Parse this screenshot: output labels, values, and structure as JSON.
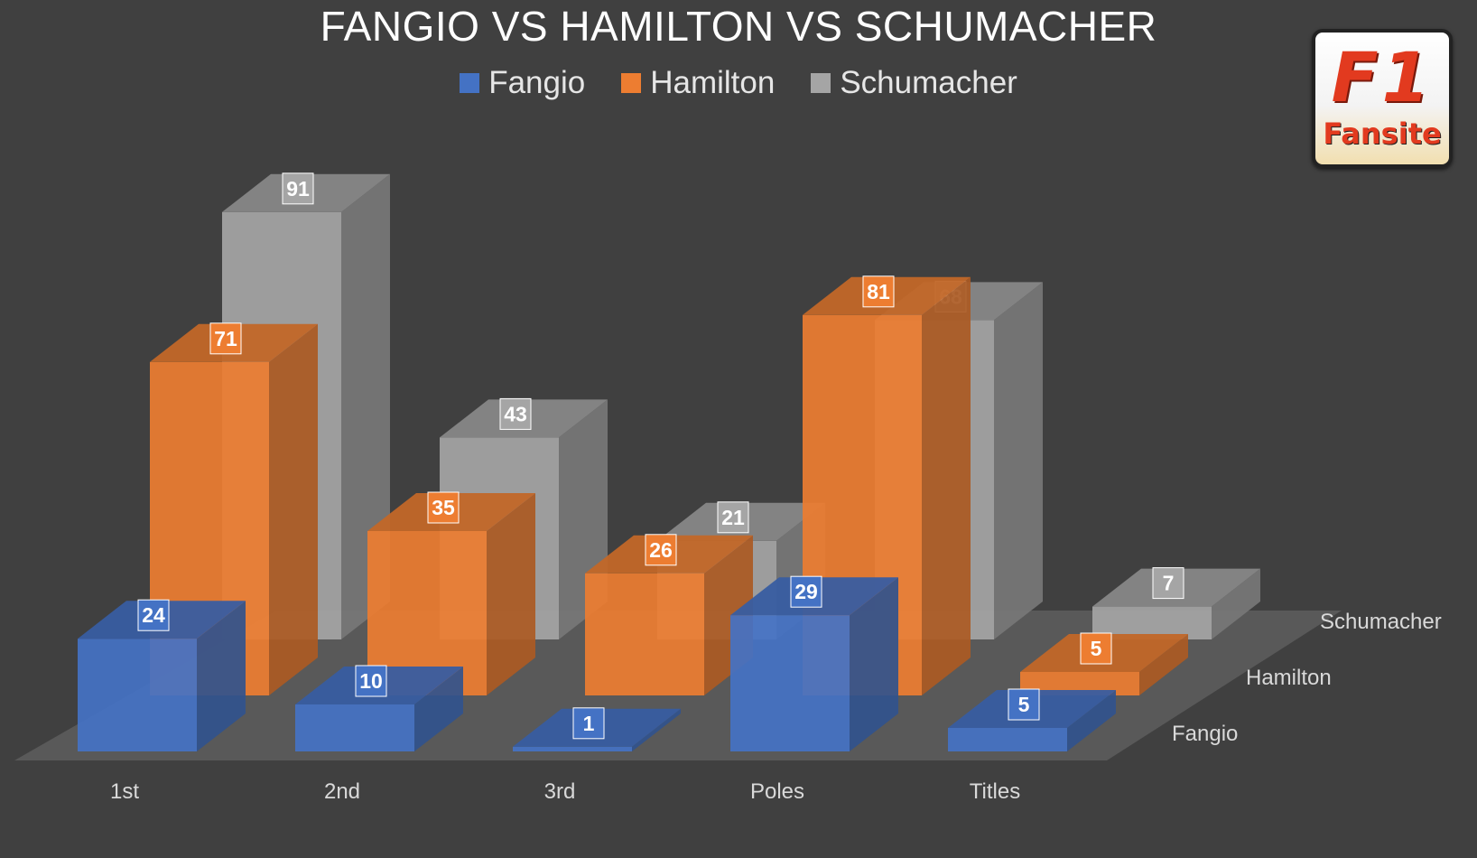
{
  "chart_data": {
    "type": "bar",
    "title": "FANGIO VS HAMILTON VS SCHUMACHER",
    "categories": [
      "1st",
      "2nd",
      "3rd",
      "Poles",
      "Titles"
    ],
    "series": [
      {
        "name": "Fangio",
        "values": [
          24,
          10,
          1,
          29,
          5
        ],
        "color": "#4472c4"
      },
      {
        "name": "Hamilton",
        "values": [
          71,
          35,
          26,
          81,
          5
        ],
        "color": "#ed7d31"
      },
      {
        "name": "Schumacher",
        "values": [
          91,
          43,
          21,
          68,
          7
        ],
        "color": "#a5a5a5"
      }
    ],
    "legend_position": "top",
    "grid": false,
    "style": "3d-column"
  },
  "logo": {
    "line1": "F1",
    "line2": "Fansite"
  }
}
